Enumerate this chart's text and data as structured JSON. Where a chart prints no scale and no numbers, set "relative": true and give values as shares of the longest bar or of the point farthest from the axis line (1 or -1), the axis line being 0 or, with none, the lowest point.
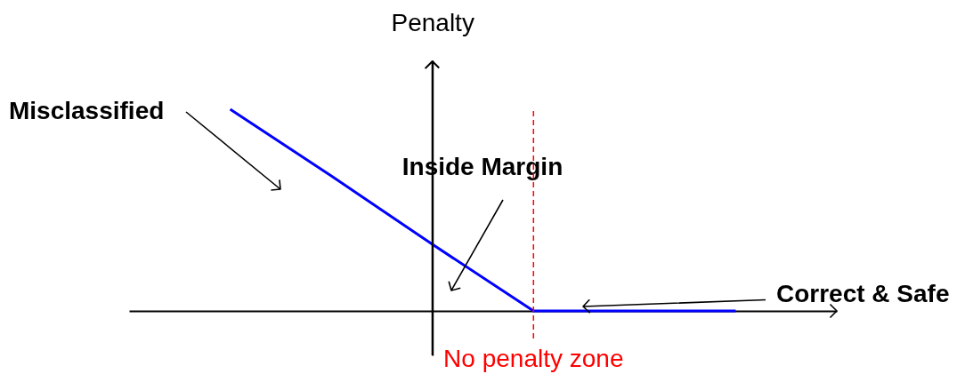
{
  "chart_data": {
    "type": "line",
    "relative": true,
    "ylabel": "Penalty",
    "categories": [
      null,
      null,
      null,
      null,
      null,
      null
    ],
    "series": [
      {
        "color": "#0000ff",
        "values": [
          1,
          0.67,
          0.33,
          0,
          0,
          0
        ]
      }
    ],
    "annotations": [
      "Misclassified",
      "Inside Margin",
      "Correct & Safe",
      "No penalty zone"
    ]
  }
}
